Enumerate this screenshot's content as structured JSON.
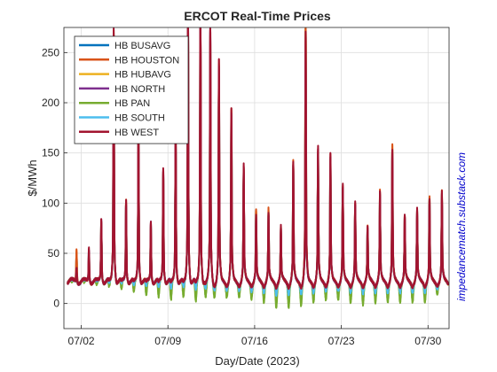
{
  "chart_data": {
    "type": "line",
    "title": "ERCOT Real-Time Prices",
    "xlabel": "Day/Date (2023)",
    "ylabel": "$/MWh",
    "watermark": "impedancematch.substack.com",
    "xlim": [
      0.6,
      31.7
    ],
    "ylim": [
      -25,
      275
    ],
    "yticks": [
      0,
      50,
      100,
      150,
      200,
      250
    ],
    "xticks": [
      {
        "value": 2,
        "label": "07/02"
      },
      {
        "value": 9,
        "label": "07/09"
      },
      {
        "value": 16,
        "label": "07/16"
      },
      {
        "value": 23,
        "label": "07/23"
      },
      {
        "value": 30,
        "label": "07/30"
      }
    ],
    "grid": true,
    "legend_position": "top-left",
    "series": [
      {
        "name": "HB BUSAVG",
        "color": "#0072BD"
      },
      {
        "name": "HB HOUSTON",
        "color": "#D95319"
      },
      {
        "name": "HB HUBAVG",
        "color": "#EDB120"
      },
      {
        "name": "HB NORTH",
        "color": "#7E2F8E"
      },
      {
        "name": "HB PAN",
        "color": "#77AC30"
      },
      {
        "name": "HB SOUTH",
        "color": "#4DBEEE"
      },
      {
        "name": "HB WEST",
        "color": "#A2142F"
      }
    ],
    "daily_peaks": [
      {
        "day": 1.0,
        "houston": 53,
        "west": 38,
        "pan_low": 15
      },
      {
        "day": 2.0,
        "houston": 50,
        "west": 55,
        "pan_low": 14
      },
      {
        "day": 3.0,
        "houston": 78,
        "west": 80,
        "pan_low": 12
      },
      {
        "day": 4.0,
        "houston": 240,
        "west": 242,
        "pan_low": 10
      },
      {
        "day": 5.0,
        "houston": 95,
        "west": 95,
        "pan_low": 8
      },
      {
        "day": 6.0,
        "houston": 160,
        "west": 162,
        "pan_low": 5
      },
      {
        "day": 7.0,
        "houston": 75,
        "west": 78,
        "pan_low": 2
      },
      {
        "day": 8.0,
        "houston": 120,
        "west": 123,
        "pan_low": 0
      },
      {
        "day": 9.0,
        "houston": 160,
        "west": 160,
        "pan_low": -3
      },
      {
        "day": 10.0,
        "houston": 270,
        "west": 275,
        "pan_low": 0
      },
      {
        "day": 11.0,
        "houston": 270,
        "west": 275,
        "pan_low": -5
      },
      {
        "day": 11.8,
        "houston": 235,
        "west": 245,
        "pan_low": 2
      },
      {
        "day": 12.5,
        "houston": 210,
        "west": 210,
        "pan_low": 5
      },
      {
        "day": 13.5,
        "houston": 170,
        "west": 170,
        "pan_low": 5
      },
      {
        "day": 14.5,
        "houston": 120,
        "west": 122,
        "pan_low": 5
      },
      {
        "day": 15.5,
        "houston": 85,
        "west": 80,
        "pan_low": 3
      },
      {
        "day": 16.5,
        "houston": 85,
        "west": 82,
        "pan_low": 0
      },
      {
        "day": 17.5,
        "houston": 70,
        "west": 70,
        "pan_low": -5
      },
      {
        "day": 18.5,
        "houston": 125,
        "west": 125,
        "pan_low": -5
      },
      {
        "day": 19.5,
        "houston": 275,
        "west": 235,
        "pan_low": -3
      },
      {
        "day": 20.5,
        "houston": 135,
        "west": 138,
        "pan_low": 0
      },
      {
        "day": 21.5,
        "houston": 130,
        "west": 132,
        "pan_low": 3
      },
      {
        "day": 22.5,
        "houston": 105,
        "west": 105,
        "pan_low": 3
      },
      {
        "day": 23.5,
        "houston": 90,
        "west": 90,
        "pan_low": 0
      },
      {
        "day": 24.5,
        "houston": 70,
        "west": 70,
        "pan_low": -2
      },
      {
        "day": 25.5,
        "houston": 100,
        "west": 100,
        "pan_low": 0
      },
      {
        "day": 26.5,
        "houston": 140,
        "west": 135,
        "pan_low": 0
      },
      {
        "day": 27.5,
        "houston": 80,
        "west": 80,
        "pan_low": 0
      },
      {
        "day": 28.5,
        "houston": 85,
        "west": 85,
        "pan_low": 0
      },
      {
        "day": 29.5,
        "houston": 95,
        "west": 92,
        "pan_low": 0
      },
      {
        "day": 30.5,
        "houston": 100,
        "west": 100,
        "pan_low": 8
      },
      {
        "day": 31.5,
        "houston": 218,
        "west": 220,
        "pan_low": 15
      }
    ]
  }
}
